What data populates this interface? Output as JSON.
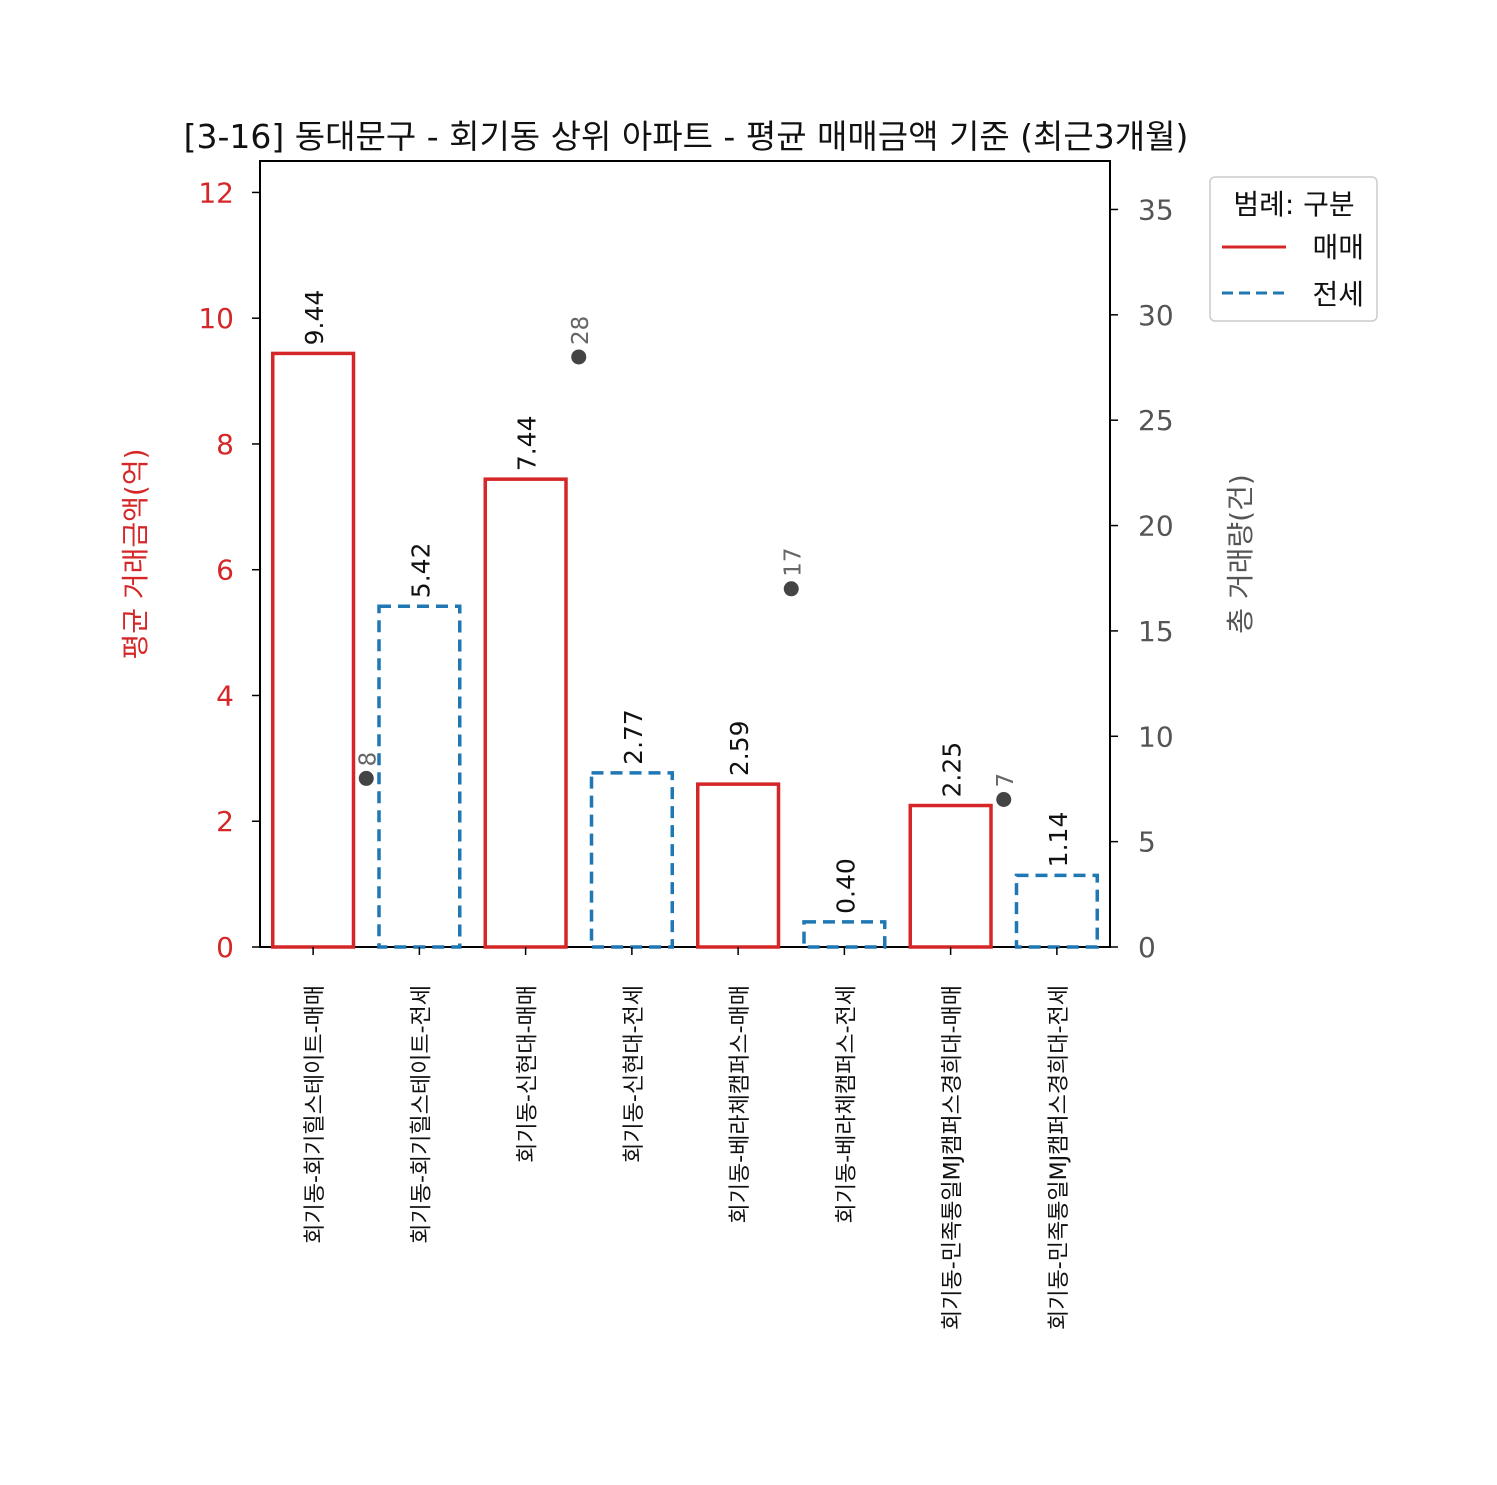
{
  "chart_data": {
    "type": "bar",
    "title": "[3-16] 동대문구 - 회기동 상위 아파트 - 평균 매매금액 기준 (최근3개월)",
    "ylabel": "평균 거래금액(억)",
    "y2label": "총 거래량(건)",
    "ylim": [
      0,
      12.5
    ],
    "y2lim": [
      0,
      37.3
    ],
    "yticks": [
      "0",
      "2",
      "4",
      "6",
      "8",
      "10",
      "12"
    ],
    "y2ticks": [
      "0",
      "5",
      "10",
      "15",
      "20",
      "25",
      "30",
      "35"
    ],
    "legend": {
      "title": "범례: 구분",
      "placement": "outside-right-top",
      "entries": [
        {
          "label": "매매",
          "color": "#d62728",
          "style": "solid"
        },
        {
          "label": "전세",
          "color": "#1f77b4",
          "style": "dashed"
        }
      ]
    },
    "categories": [
      "회기동-회기힐스테이트-매매",
      "회기동-회기힐스테이트-전세",
      "회기동-신현대-매매",
      "회기동-신현대-전세",
      "회기동-베라체캠퍼스-매매",
      "회기동-베라체캠퍼스-전세",
      "회기동-민족통일MJ캠퍼스경희대-매매",
      "회기동-민족통일MJ캠퍼스경희대-전세"
    ],
    "bars": [
      {
        "value": 9.44,
        "label": "9.44",
        "kind": "매매"
      },
      {
        "value": 5.42,
        "label": "5.42",
        "kind": "전세"
      },
      {
        "value": 7.44,
        "label": "7.44",
        "kind": "매매"
      },
      {
        "value": 2.77,
        "label": "2.77",
        "kind": "전세"
      },
      {
        "value": 2.59,
        "label": "2.59",
        "kind": "매매"
      },
      {
        "value": 0.4,
        "label": "0.40",
        "kind": "전세"
      },
      {
        "value": 2.25,
        "label": "2.25",
        "kind": "매매"
      },
      {
        "value": 1.14,
        "label": "1.14",
        "kind": "전세"
      }
    ],
    "volume_points": [
      {
        "group": 0,
        "value": 8,
        "label": "8"
      },
      {
        "group": 1,
        "value": 28,
        "label": "28"
      },
      {
        "group": 2,
        "value": 17,
        "label": "17"
      },
      {
        "group": 3,
        "value": 7,
        "label": "7"
      }
    ],
    "colors": {
      "sale": "#d62728",
      "jeonse": "#1f77b4",
      "left_axis": "#d62728",
      "right_axis": "#555555",
      "point": "#444444"
    },
    "grid": false
  }
}
